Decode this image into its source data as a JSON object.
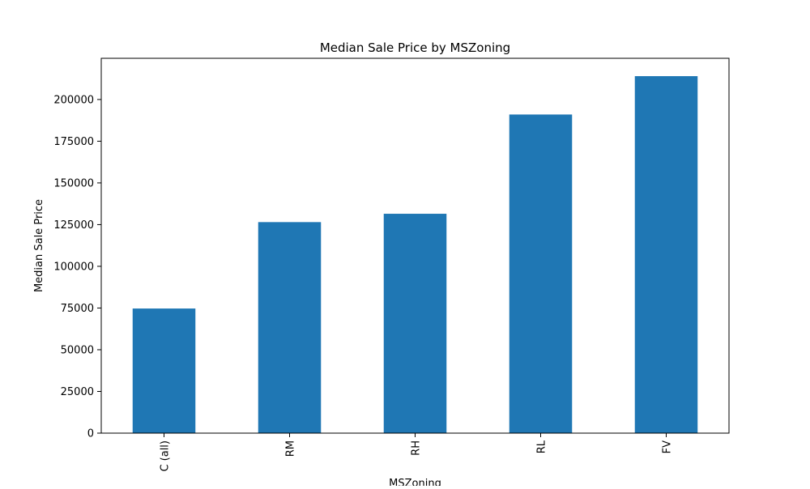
{
  "chart_data": {
    "type": "bar",
    "title": "Median Sale Price by MSZoning",
    "xlabel": "MSZoning",
    "ylabel": "Median Sale Price",
    "categories": [
      "C (all)",
      "RM",
      "RH",
      "RL",
      "FV"
    ],
    "values": [
      74700,
      126500,
      131500,
      191000,
      214000
    ],
    "ylim": [
      0,
      224700
    ],
    "yticks": [
      0,
      25000,
      50000,
      75000,
      100000,
      125000,
      150000,
      175000,
      200000
    ],
    "bar_color": "#1f77b4",
    "grid": false,
    "legend": "none"
  }
}
